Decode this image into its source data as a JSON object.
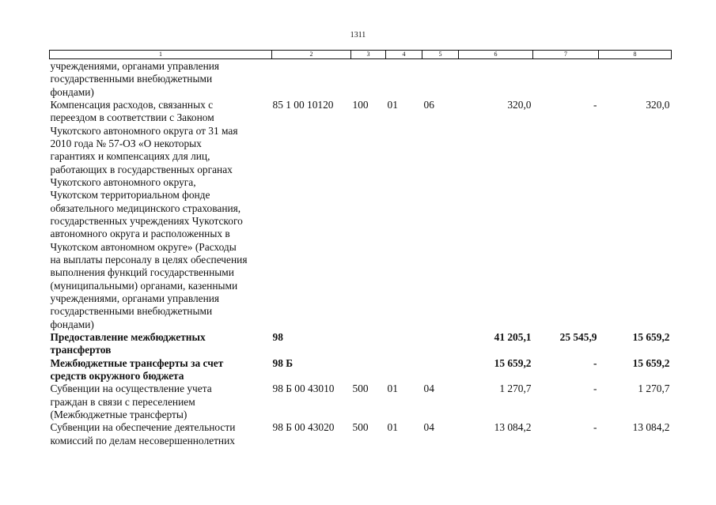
{
  "page_number": "1311",
  "headers": [
    "1",
    "2",
    "3",
    "4",
    "5",
    "6",
    "7",
    "8"
  ],
  "rows": [
    {
      "bold": false,
      "cells": [
        "учреждениями, органами управления\nгосударственными внебюджетными\nфондами)",
        "",
        "",
        "",
        "",
        "",
        "",
        ""
      ]
    },
    {
      "bold": false,
      "cells": [
        "Компенсация расходов, связанных с\nпереездом в соответствии с Законом\nЧукотского автономного округа от 31 мая\n2010 года № 57-ОЗ «О некоторых\nгарантиях и компенсациях для лиц,\nработающих в государственных органах\nЧукотского автономного округа,\nЧукотском территориальном фонде\nобязательного медицинского страхования,\nгосударственных учреждениях Чукотского\nавтономного округа и расположенных в\nЧукотском автономном округе» (Расходы\nна выплаты персоналу в целях обеспечения\nвыполнения функций государственными\n(муниципальными) органами, казенными\nучреждениями, органами управления\nгосударственными внебюджетными\nфондами)",
        "85 1 00 10120",
        "100",
        "01",
        "06",
        "320,0",
        "-",
        "320,0"
      ]
    },
    {
      "bold": true,
      "cells": [
        "Предоставление межбюджетных\nтрансфертов",
        "98",
        "",
        "",
        "",
        "41 205,1",
        "25 545,9",
        "15 659,2"
      ]
    },
    {
      "bold": true,
      "cells": [
        "Межбюджетные трансферты за счет\nсредств окружного бюджета",
        "98 Б",
        "",
        "",
        "",
        "15 659,2",
        "-",
        "15 659,2"
      ]
    },
    {
      "bold": false,
      "cells": [
        "Субвенции на осуществление учета\nграждан в связи с переселением\n(Межбюджетные трансферты)",
        "98 Б 00 43010",
        "500",
        "01",
        "04",
        "1 270,7",
        "-",
        "1 270,7"
      ]
    },
    {
      "bold": false,
      "cells": [
        "Субвенции на обеспечение деятельности\nкомиссий по делам несовершеннолетних",
        "98 Б 00 43020",
        "500",
        "01",
        "04",
        "13 084,2",
        "-",
        "13 084,2"
      ]
    }
  ]
}
